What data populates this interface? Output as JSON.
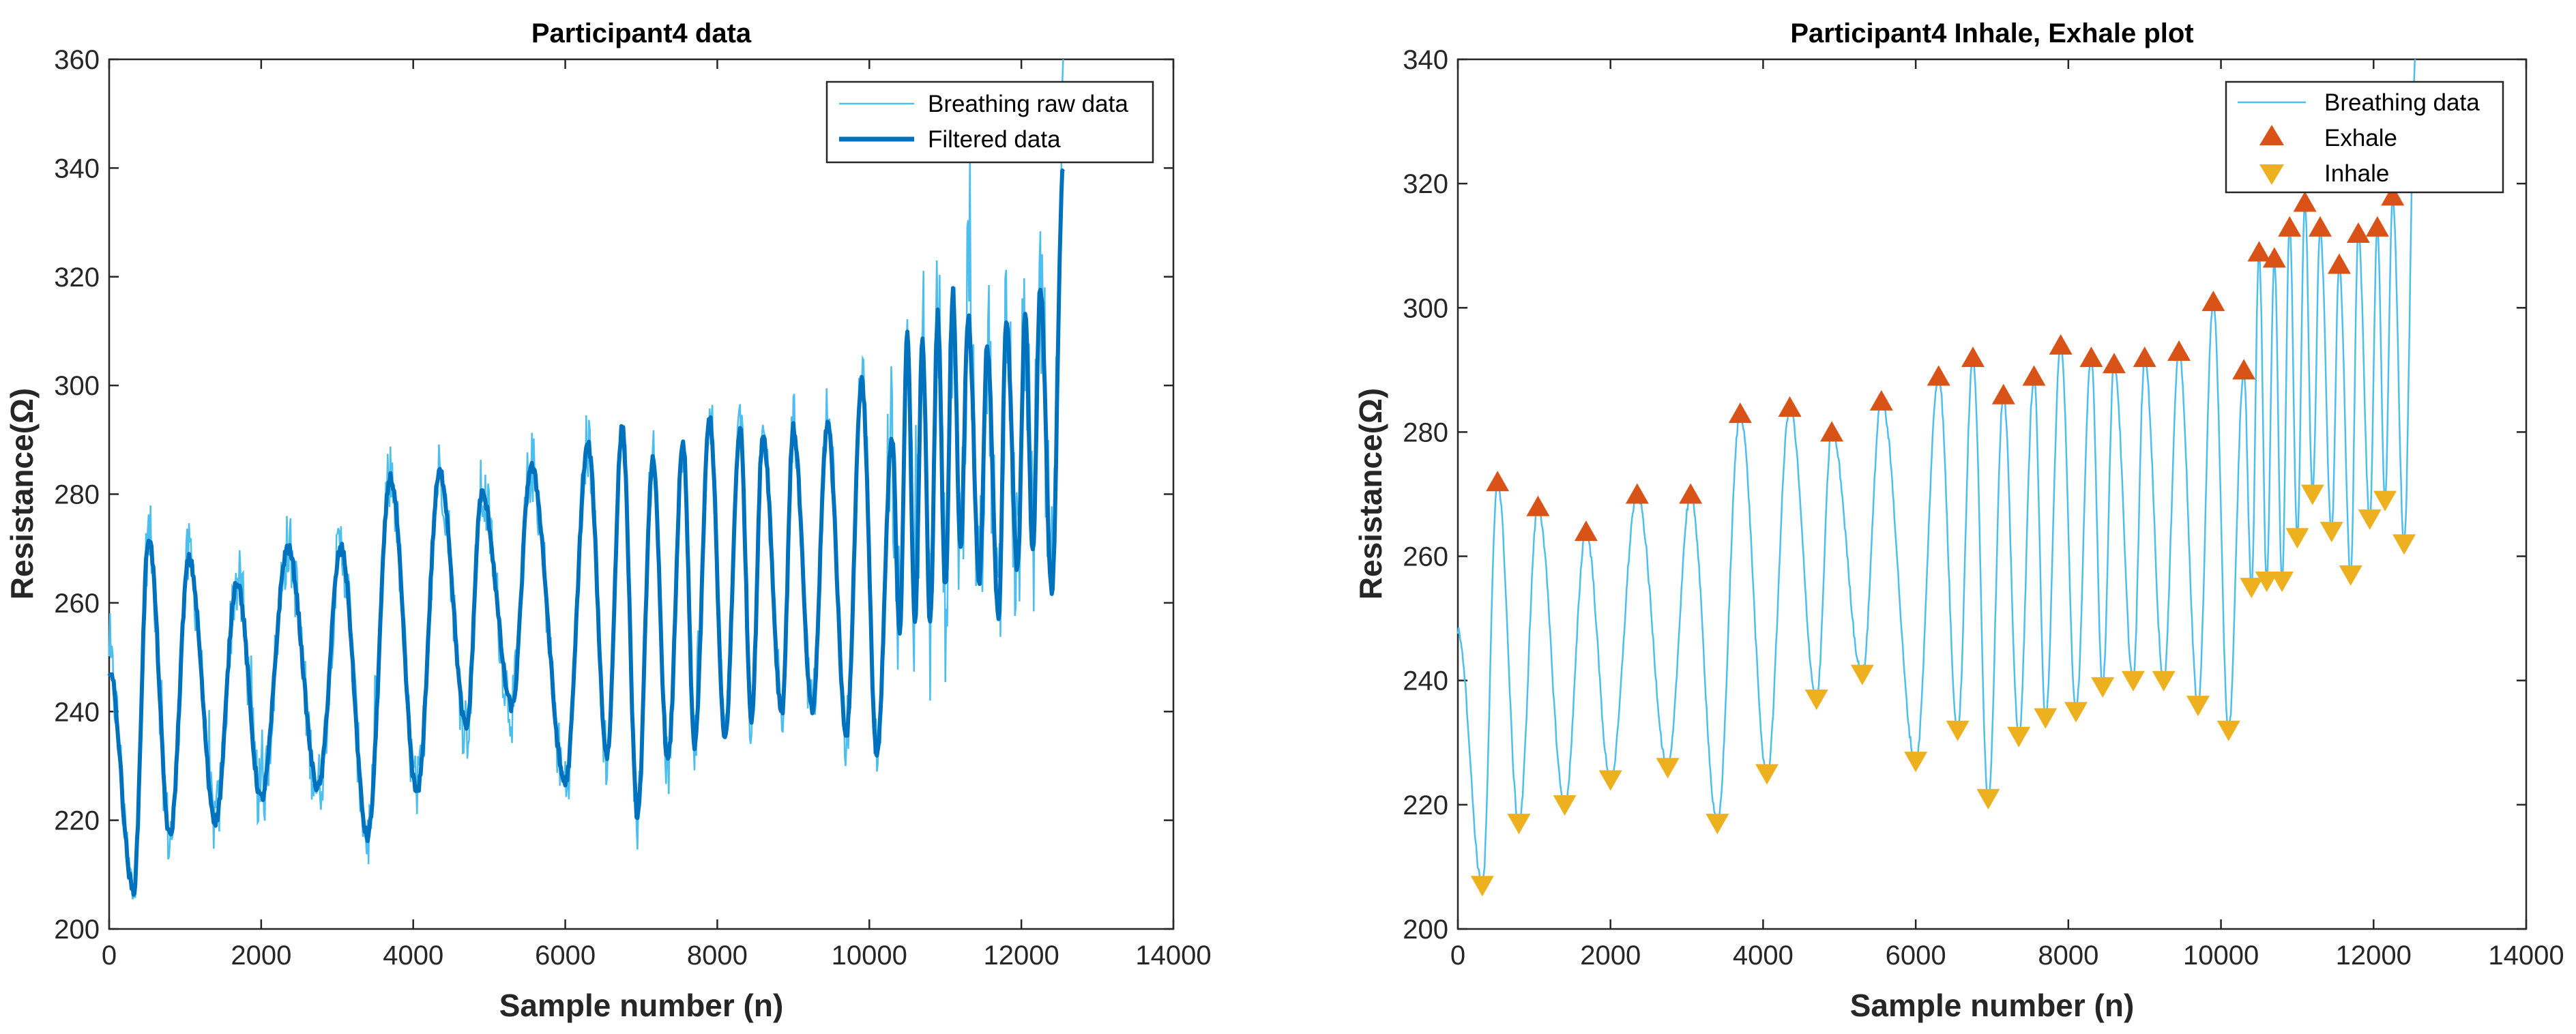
{
  "chart_data": [
    {
      "type": "line",
      "title": "Participant4 data",
      "xlabel": "Sample number (n)",
      "ylabel": "Resistance(Ω)",
      "xlim": [
        0,
        14000
      ],
      "ylim": [
        200,
        360
      ],
      "xticks": [
        "0",
        "2000",
        "4000",
        "6000",
        "8000",
        "10000",
        "12000",
        "14000"
      ],
      "yticks": [
        "200",
        "220",
        "240",
        "260",
        "280",
        "300",
        "320",
        "340",
        "360"
      ],
      "legend_position": "top-right",
      "grid": false,
      "series": [
        {
          "name": "Breathing raw data",
          "color": "#4DBEEE",
          "style": "thin-line",
          "noise_amplitude": 7
        },
        {
          "name": "Filtered data",
          "color": "#0072BD",
          "style": "thick-line"
        }
      ],
      "envelope": [
        {
          "x": 0,
          "y": 248
        },
        {
          "x": 320,
          "y": 207
        },
        {
          "x": 520,
          "y": 272
        },
        {
          "x": 800,
          "y": 217
        },
        {
          "x": 1050,
          "y": 268
        },
        {
          "x": 1400,
          "y": 220
        },
        {
          "x": 1680,
          "y": 264
        },
        {
          "x": 2000,
          "y": 224
        },
        {
          "x": 2350,
          "y": 270
        },
        {
          "x": 2750,
          "y": 226
        },
        {
          "x": 3050,
          "y": 270
        },
        {
          "x": 3400,
          "y": 217
        },
        {
          "x": 3700,
          "y": 283
        },
        {
          "x": 4050,
          "y": 225
        },
        {
          "x": 4350,
          "y": 284
        },
        {
          "x": 4700,
          "y": 237
        },
        {
          "x": 4900,
          "y": 280
        },
        {
          "x": 5300,
          "y": 241
        },
        {
          "x": 5550,
          "y": 285
        },
        {
          "x": 6000,
          "y": 227
        },
        {
          "x": 6300,
          "y": 289
        },
        {
          "x": 6550,
          "y": 232
        },
        {
          "x": 6750,
          "y": 292
        },
        {
          "x": 6950,
          "y": 221
        },
        {
          "x": 7150,
          "y": 286
        },
        {
          "x": 7350,
          "y": 231
        },
        {
          "x": 7550,
          "y": 289
        },
        {
          "x": 7700,
          "y": 234
        },
        {
          "x": 7900,
          "y": 294
        },
        {
          "x": 8100,
          "y": 235
        },
        {
          "x": 8300,
          "y": 292
        },
        {
          "x": 8450,
          "y": 239
        },
        {
          "x": 8600,
          "y": 291
        },
        {
          "x": 8850,
          "y": 240
        },
        {
          "x": 9000,
          "y": 292
        },
        {
          "x": 9250,
          "y": 240
        },
        {
          "x": 9450,
          "y": 293
        },
        {
          "x": 9700,
          "y": 236
        },
        {
          "x": 9900,
          "y": 301
        },
        {
          "x": 10100,
          "y": 232
        },
        {
          "x": 10300,
          "y": 290
        },
        {
          "x": 10400,
          "y": 255
        },
        {
          "x": 10500,
          "y": 309
        },
        {
          "x": 10600,
          "y": 256
        },
        {
          "x": 10700,
          "y": 308
        },
        {
          "x": 10800,
          "y": 256
        },
        {
          "x": 10900,
          "y": 313
        },
        {
          "x": 11000,
          "y": 263
        },
        {
          "x": 11100,
          "y": 317
        },
        {
          "x": 11200,
          "y": 270
        },
        {
          "x": 11300,
          "y": 313
        },
        {
          "x": 11450,
          "y": 264
        },
        {
          "x": 11550,
          "y": 307
        },
        {
          "x": 11700,
          "y": 257
        },
        {
          "x": 11800,
          "y": 312
        },
        {
          "x": 11950,
          "y": 266
        },
        {
          "x": 12050,
          "y": 313
        },
        {
          "x": 12150,
          "y": 269
        },
        {
          "x": 12250,
          "y": 318
        },
        {
          "x": 12400,
          "y": 262
        },
        {
          "x": 12550,
          "y": 340
        }
      ]
    },
    {
      "type": "line",
      "title": "Participant4 Inhale, Exhale plot",
      "xlabel": "Sample number (n)",
      "ylabel": "Resistance(Ω)",
      "xlim": [
        0,
        14000
      ],
      "ylim": [
        200,
        340
      ],
      "xticks": [
        "0",
        "2000",
        "4000",
        "6000",
        "8000",
        "10000",
        "12000",
        "14000"
      ],
      "yticks": [
        "200",
        "220",
        "240",
        "260",
        "280",
        "300",
        "320",
        "340"
      ],
      "legend_position": "top-right",
      "grid": false,
      "series": [
        {
          "name": "Breathing data",
          "color": "#4DBEEE",
          "style": "thin-line"
        },
        {
          "name": "Exhale",
          "color": "#D95319",
          "style": "marker-triangle-up"
        },
        {
          "name": "Inhale",
          "color": "#EDB120",
          "style": "marker-triangle-down"
        }
      ],
      "exhale": [
        {
          "x": 520,
          "y": 272
        },
        {
          "x": 1050,
          "y": 268
        },
        {
          "x": 1680,
          "y": 264
        },
        {
          "x": 2350,
          "y": 270
        },
        {
          "x": 3050,
          "y": 270
        },
        {
          "x": 3700,
          "y": 283
        },
        {
          "x": 4350,
          "y": 284
        },
        {
          "x": 4900,
          "y": 280
        },
        {
          "x": 5550,
          "y": 285
        },
        {
          "x": 6300,
          "y": 289
        },
        {
          "x": 6750,
          "y": 292
        },
        {
          "x": 7150,
          "y": 286
        },
        {
          "x": 7550,
          "y": 289
        },
        {
          "x": 7900,
          "y": 294
        },
        {
          "x": 8300,
          "y": 292
        },
        {
          "x": 8600,
          "y": 291
        },
        {
          "x": 9000,
          "y": 292
        },
        {
          "x": 9450,
          "y": 293
        },
        {
          "x": 9900,
          "y": 301
        },
        {
          "x": 10300,
          "y": 290
        },
        {
          "x": 10500,
          "y": 309
        },
        {
          "x": 10700,
          "y": 308
        },
        {
          "x": 10900,
          "y": 313
        },
        {
          "x": 11100,
          "y": 317
        },
        {
          "x": 11300,
          "y": 313
        },
        {
          "x": 11550,
          "y": 307
        },
        {
          "x": 11800,
          "y": 312
        },
        {
          "x": 12050,
          "y": 313
        },
        {
          "x": 12250,
          "y": 318
        }
      ],
      "inhale": [
        {
          "x": 320,
          "y": 207
        },
        {
          "x": 800,
          "y": 217
        },
        {
          "x": 1400,
          "y": 220
        },
        {
          "x": 2000,
          "y": 224
        },
        {
          "x": 2750,
          "y": 226
        },
        {
          "x": 3400,
          "y": 217
        },
        {
          "x": 4050,
          "y": 225
        },
        {
          "x": 4700,
          "y": 237
        },
        {
          "x": 5300,
          "y": 241
        },
        {
          "x": 6000,
          "y": 227
        },
        {
          "x": 6550,
          "y": 232
        },
        {
          "x": 6950,
          "y": 221
        },
        {
          "x": 7350,
          "y": 231
        },
        {
          "x": 7700,
          "y": 234
        },
        {
          "x": 8100,
          "y": 235
        },
        {
          "x": 8450,
          "y": 239
        },
        {
          "x": 8850,
          "y": 240
        },
        {
          "x": 9250,
          "y": 240
        },
        {
          "x": 9700,
          "y": 236
        },
        {
          "x": 10100,
          "y": 232
        },
        {
          "x": 10400,
          "y": 255
        },
        {
          "x": 10600,
          "y": 256
        },
        {
          "x": 10800,
          "y": 256
        },
        {
          "x": 11000,
          "y": 263
        },
        {
          "x": 11200,
          "y": 270
        },
        {
          "x": 11450,
          "y": 264
        },
        {
          "x": 11700,
          "y": 257
        },
        {
          "x": 11950,
          "y": 266
        },
        {
          "x": 12150,
          "y": 269
        },
        {
          "x": 12400,
          "y": 262
        }
      ]
    }
  ]
}
